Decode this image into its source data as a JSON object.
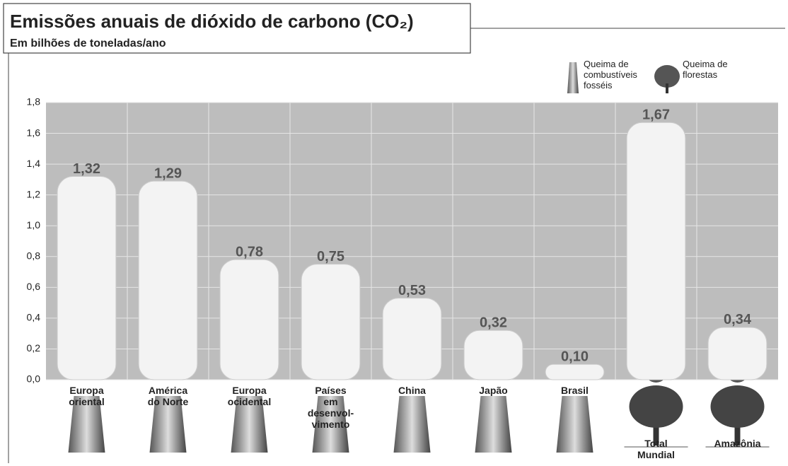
{
  "chart_data": {
    "type": "bar",
    "title": "Emissões anuais de dióxido de carbono (CO₂)",
    "subtitle": "Em bilhões de toneladas/ano",
    "categories": [
      "Europa\noriental",
      "América\ndo Norte",
      "Europa\nocidental",
      "Países\nem\ndesenvol-\nvimento",
      "China",
      "Japão",
      "Brasil",
      "Total\nMundial",
      "Amazônia"
    ],
    "series": [
      {
        "name": "Queima de\ncombustíveis\nfosséis",
        "color": "#f3f3f3",
        "values": [
          1.32,
          1.29,
          0.78,
          0.75,
          0.53,
          0.32,
          0.1,
          null,
          null
        ],
        "value_labels": [
          "1,32",
          "1,29",
          "0,78",
          "0,75",
          "0,53",
          "0,32",
          "0,10",
          null,
          null
        ]
      },
      {
        "name": "Queima de\nflorestas",
        "color": "#f3f3f3",
        "values": [
          null,
          null,
          null,
          null,
          null,
          null,
          null,
          1.67,
          0.34
        ],
        "value_labels": [
          null,
          null,
          null,
          null,
          null,
          null,
          null,
          "1,67",
          "0,34"
        ]
      }
    ],
    "ylim": [
      0,
      1.8
    ],
    "yticks": [
      {
        "value": 0,
        "label": "0,0"
      },
      {
        "value": 0.2,
        "label": "0,2"
      },
      {
        "value": 0.4,
        "label": "0,4"
      },
      {
        "value": 0.6,
        "label": "0,6"
      },
      {
        "value": 0.8,
        "label": "0,8"
      },
      {
        "value": 1.0,
        "label": "1,0"
      },
      {
        "value": 1.2,
        "label": "1,2"
      },
      {
        "value": 1.4,
        "label": "1,4"
      },
      {
        "value": 1.6,
        "label": "1,6"
      },
      {
        "value": 1.8,
        "label": "1,8"
      }
    ],
    "grid": true
  }
}
